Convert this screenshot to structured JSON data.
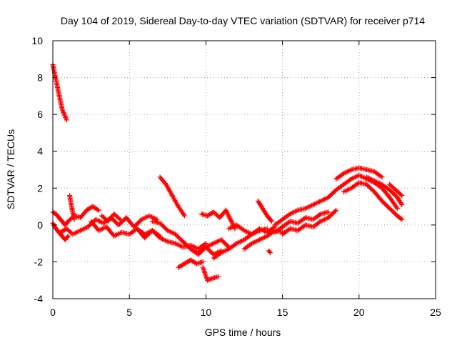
{
  "chart_data": {
    "type": "scatter",
    "title": "Day 104 of 2019, Sidereal Day-to-day VTEC variation (SDTVAR) for receiver p714",
    "xlabel": "GPS time / hours",
    "ylabel": "SDTVAR / TECUs",
    "xlim": [
      0,
      25
    ],
    "ylim": [
      -4,
      10
    ],
    "xticks": [
      "0",
      "5",
      "10",
      "15",
      "20",
      "25"
    ],
    "yticks": [
      "-4",
      "-2",
      "0",
      "2",
      "4",
      "6",
      "8",
      "10"
    ],
    "grid": true,
    "marker": "+",
    "series": [
      {
        "name": "SDTVAR",
        "color": "#ff0000",
        "tracks": [
          {
            "x": [
              0.0,
              0.2,
              0.4,
              0.6,
              0.8,
              0.9
            ],
            "y": [
              8.7,
              7.9,
              7.1,
              6.3,
              5.9,
              5.7
            ]
          },
          {
            "x": [
              0.0,
              0.2,
              0.5,
              0.8,
              1.0,
              1.4,
              1.8,
              2.2,
              2.6,
              3.0
            ],
            "y": [
              0.7,
              0.6,
              0.3,
              0.0,
              0.2,
              0.5,
              0.4,
              0.8,
              1.0,
              0.8
            ]
          },
          {
            "x": [
              0.0,
              0.2,
              0.5,
              0.8,
              1.0
            ],
            "y": [
              0.1,
              -0.2,
              -0.5,
              -0.8,
              -0.6
            ]
          },
          {
            "x": [
              0.5,
              0.9,
              1.3,
              1.8,
              2.3,
              2.8,
              3.3,
              3.8,
              4.3,
              4.8,
              5.3,
              5.8,
              6.3,
              6.8
            ],
            "y": [
              -0.4,
              -0.2,
              -0.5,
              -0.3,
              -0.1,
              0.3,
              0.1,
              0.4,
              0.0,
              0.4,
              -0.1,
              0.3,
              0.5,
              0.3
            ]
          },
          {
            "x": [
              1.1,
              1.2,
              1.3,
              1.4
            ],
            "y": [
              1.6,
              1.1,
              0.7,
              0.3
            ]
          },
          {
            "x": [
              2.5,
              3.0,
              3.5,
              4.0,
              4.5,
              5.0,
              5.5,
              6.0,
              6.5,
              7.0
            ],
            "y": [
              0.2,
              -0.3,
              -0.1,
              -0.6,
              -0.4,
              -0.5,
              -0.2,
              -0.7,
              -0.3,
              -0.6
            ]
          },
          {
            "x": [
              3.2,
              3.6,
              4.0,
              4.4
            ],
            "y": [
              0.5,
              0.2,
              0.6,
              0.3
            ]
          },
          {
            "x": [
              5.5,
              6.0,
              6.5,
              7.0,
              7.5,
              8.0,
              8.5,
              9.0,
              9.5,
              10.0
            ],
            "y": [
              -0.2,
              -0.5,
              -0.3,
              -0.7,
              -0.9,
              -1.0,
              -1.2,
              -1.1,
              -1.3,
              -1.0
            ]
          },
          {
            "x": [
              6.5,
              7.0,
              7.5,
              8.0,
              8.5,
              9.0,
              9.5,
              10.0,
              10.5,
              11.0
            ],
            "y": [
              0.2,
              0.1,
              -0.3,
              -0.5,
              -0.9,
              -1.3,
              -1.5,
              -1.2,
              -1.6,
              -1.4
            ]
          },
          {
            "x": [
              7.0,
              7.4,
              7.8,
              8.2,
              8.6
            ],
            "y": [
              2.6,
              2.2,
              1.6,
              1.0,
              0.5
            ]
          },
          {
            "x": [
              8.5,
              9.0,
              9.5,
              10.0,
              10.5,
              11.0,
              11.5
            ],
            "y": [
              -0.9,
              -1.3,
              -1.6,
              -1.2,
              -1.0,
              -0.8,
              -1.2
            ]
          },
          {
            "x": [
              8.2,
              8.6,
              9.0,
              9.4,
              9.8
            ],
            "y": [
              -2.3,
              -2.1,
              -1.9,
              -2.1,
              -2.0
            ]
          },
          {
            "x": [
              9.8,
              10.1,
              10.4,
              10.8
            ],
            "y": [
              -2.3,
              -3.0,
              -2.9,
              -2.8
            ]
          },
          {
            "x": [
              9.7,
              10.1,
              10.5,
              10.9,
              11.3
            ],
            "y": [
              0.6,
              0.5,
              0.7,
              0.4,
              0.8
            ]
          },
          {
            "x": [
              10.5,
              11.0,
              11.5,
              12.0,
              12.5,
              13.0,
              13.5,
              14.0
            ],
            "y": [
              -1.8,
              -1.5,
              -1.3,
              -1.0,
              -0.8,
              -0.5,
              -0.3,
              -0.2
            ]
          },
          {
            "x": [
              11.3,
              11.6,
              11.9
            ],
            "y": [
              0.8,
              0.3,
              -0.2
            ]
          },
          {
            "x": [
              11.5,
              12.0,
              12.5,
              13.0,
              13.5,
              14.0,
              14.5
            ],
            "y": [
              -0.2,
              0.0,
              -0.3,
              -0.5,
              -0.2,
              -0.4,
              -0.1
            ]
          },
          {
            "x": [
              12.5,
              13.0,
              13.5,
              14.0,
              14.5,
              15.0
            ],
            "y": [
              -1.3,
              -1.0,
              -0.8,
              -0.6,
              -0.3,
              -0.4
            ]
          },
          {
            "x": [
              13.4,
              13.7,
              14.0,
              14.3
            ],
            "y": [
              1.3,
              0.9,
              0.5,
              0.2
            ]
          },
          {
            "x": [
              14.1,
              14.2
            ],
            "y": [
              -1.4,
              -1.5
            ]
          },
          {
            "x": [
              14.5,
              15.0,
              15.5,
              16.0,
              16.5,
              17.0,
              17.5,
              18.0,
              18.5,
              19.0
            ],
            "y": [
              0.0,
              0.3,
              0.6,
              0.8,
              0.9,
              1.1,
              1.3,
              1.5,
              1.9,
              2.2
            ]
          },
          {
            "x": [
              14.5,
              15.0,
              15.5,
              16.0,
              16.5,
              17.0,
              17.5,
              18.0
            ],
            "y": [
              -0.4,
              -0.1,
              0.2,
              0.1,
              0.4,
              0.3,
              0.6,
              0.7
            ]
          },
          {
            "x": [
              15.0,
              15.5,
              16.0,
              16.5,
              17.0,
              17.5,
              18.0,
              18.5
            ],
            "y": [
              -0.5,
              -0.2,
              -0.3,
              0.0,
              -0.1,
              0.2,
              0.4,
              0.8
            ]
          },
          {
            "x": [
              18.5,
              19.0,
              19.5,
              20.0,
              20.5,
              21.0,
              21.5
            ],
            "y": [
              2.5,
              2.8,
              3.0,
              3.1,
              3.0,
              2.9,
              2.6
            ]
          },
          {
            "x": [
              19.0,
              19.5,
              20.0,
              20.5,
              21.0,
              21.5,
              22.0,
              22.5
            ],
            "y": [
              2.2,
              2.5,
              2.7,
              2.5,
              2.3,
              2.0,
              1.5,
              0.9
            ]
          },
          {
            "x": [
              19.0,
              19.5,
              20.0,
              20.5,
              21.0,
              21.5,
              22.0,
              22.5,
              22.8
            ],
            "y": [
              1.8,
              2.0,
              2.3,
              2.2,
              1.8,
              1.3,
              0.9,
              0.5,
              0.3
            ]
          },
          {
            "x": [
              20.5,
              21.0,
              21.5,
              22.0,
              22.5,
              22.8
            ],
            "y": [
              2.6,
              2.4,
              2.2,
              1.9,
              1.5,
              1.1
            ]
          },
          {
            "x": [
              22.0,
              22.4,
              22.8
            ],
            "y": [
              2.2,
              1.9,
              1.6
            ]
          }
        ]
      }
    ]
  }
}
